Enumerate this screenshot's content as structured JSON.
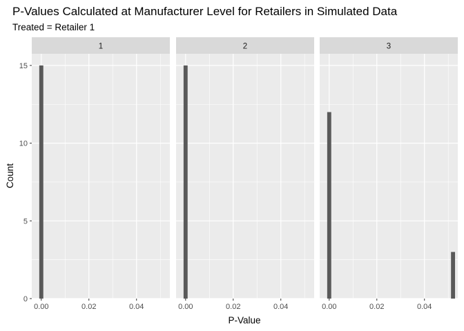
{
  "chart_data": {
    "type": "bar",
    "title": "P-Values Calculated at Manufacturer Level for Retailers in Simulated Data",
    "subtitle": "Treated = Retailer 1",
    "xlabel": "P-Value",
    "ylabel": "Count",
    "xlim": [
      -0.004,
      0.054
    ],
    "ylim": [
      0,
      15.75
    ],
    "x_ticks": [
      0.0,
      0.02,
      0.04
    ],
    "x_tick_labels": [
      "0.00",
      "0.02",
      "0.04"
    ],
    "y_ticks": [
      0,
      5,
      10,
      15
    ],
    "y_tick_labels": [
      "0",
      "5",
      "10",
      "15"
    ],
    "grid": true,
    "facets": [
      {
        "label": "1",
        "bins": [
          {
            "x": 0.0,
            "count": 15
          }
        ]
      },
      {
        "label": "2",
        "bins": [
          {
            "x": 0.0,
            "count": 15
          }
        ]
      },
      {
        "label": "3",
        "bins": [
          {
            "x": 0.0,
            "count": 12
          },
          {
            "x": 0.052,
            "count": 3
          }
        ]
      }
    ],
    "bin_width": 0.0017,
    "colors": {
      "bar": "#595959",
      "panel_bg": "#ebebeb",
      "strip_bg": "#d9d9d9",
      "grid": "#ffffff"
    }
  }
}
